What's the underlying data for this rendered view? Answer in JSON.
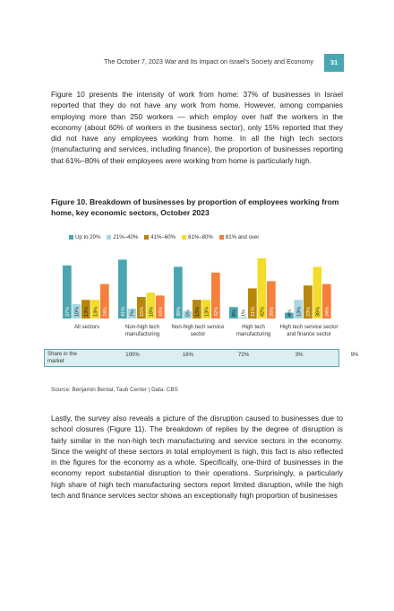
{
  "header": {
    "running_title": "The October 7, 2023 War and Its Impact on Israel's Society and Economy",
    "page_number": "31"
  },
  "intro_paragraph": "Figure 10 presents the intensity of work from home: 37% of businesses in Israel reported that they do not have any work from home. However, among companies employing more than 250 workers — which employ over half the workers in the economy (about 60% of workers in the business sector), only 15% reported that they did not have any employees working from home. In all the high tech sectors (manufacturing and services, including finance), the proportion of businesses reporting that 61%–80% of their employees were working from home is particularly high.",
  "figure": {
    "title": "Figure 10. Breakdown of businesses by proportion of employees working from home, key economic sectors, October 2023",
    "source": "Source: Benjamin Bental, Taub Center | Data: CBS",
    "share_label": "Share in the market",
    "shares": [
      "100%",
      "16%",
      "72%",
      "3%",
      "9%"
    ]
  },
  "chart_data": {
    "type": "bar",
    "title": "Breakdown of businesses by proportion of employees working from home, key economic sectors, October 2023",
    "categories": [
      "All sectors",
      "Non-high tech manufacturing",
      "Non-high tech service sector",
      "High tech manufacturing",
      "High tech service sector and finance sector"
    ],
    "series": [
      {
        "name": "Up to 20%",
        "color": "#4aa6b0",
        "values": [
          37,
          41,
          36,
          8,
          4
        ]
      },
      {
        "name": "21%–40%",
        "color": "#a9d7e1",
        "values": [
          10,
          7,
          5,
          1,
          13
        ]
      },
      {
        "name": "41%–60%",
        "color": "#b8860b",
        "values": [
          13,
          15,
          13,
          21,
          23
        ]
      },
      {
        "name": "61%–80%",
        "color": "#f3dc2b",
        "values": [
          13,
          18,
          13,
          42,
          36
        ]
      },
      {
        "name": "81% and over",
        "color": "#f57f3d",
        "values": [
          24,
          16,
          32,
          26,
          24
        ]
      }
    ],
    "ylim": [
      0,
      45
    ],
    "xlabel": "",
    "ylabel": ""
  },
  "closing_paragraph": "Lastly, the survey also reveals a picture of the disruption caused to businesses due to school closures (Figure 11). The breakdown of replies by the degree of disruption is fairly similar in the non-high tech manufacturing and service sectors in the economy. Since the weight of these sectors in total employment is high, this fact is also reflected in the figures for the economy as a whole. Specifically, one-third of businesses in the economy report substantial disruption to their operations. Surprisingly, a particularly high share of high tech manufacturing sectors report limited disruption, while the high tech and finance services sector shows an exceptionally high proportion of businesses"
}
